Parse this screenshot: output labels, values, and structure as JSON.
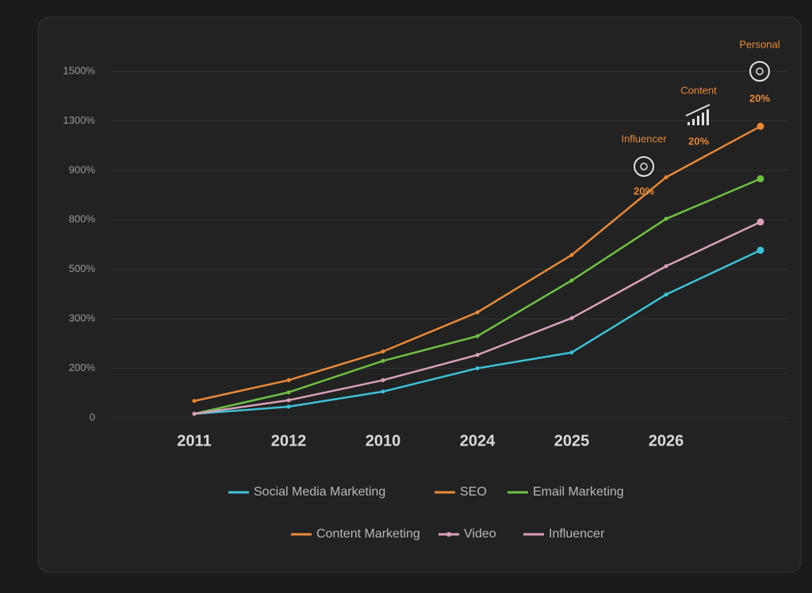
{
  "chart_data": {
    "type": "line",
    "categories": [
      "2011",
      "2012",
      "2010",
      "2024",
      "2025",
      "2026",
      null
    ],
    "ylim": [
      0,
      1500
    ],
    "yticks": [
      0,
      {
        "value": 200,
        "label": "200%"
      },
      {
        "value": 300,
        "label": "300%"
      },
      {
        "value": 500,
        "label": "500%"
      },
      {
        "value": 800,
        "label": "800%"
      },
      {
        "value": 900,
        "label": "900%"
      },
      {
        "value": 1300,
        "label": "1300%"
      },
      {
        "value": 1500,
        "label": "1500%"
      }
    ],
    "grid": true,
    "series": [
      {
        "name": "Social Media Marketing",
        "color": "#3fc1d6",
        "values": [
          16,
          45,
          106,
          200,
          232,
          398,
          616
        ]
      },
      {
        "name": "SEO",
        "color": "#e8893a",
        "values": [
          68,
          152,
          234,
          326,
          587,
          886,
          1256
        ]
      },
      {
        "name": "Email Marketing",
        "color": "#6fbf45",
        "values": [
          16,
          103,
          215,
          265,
          455,
          802,
          883
        ]
      },
      {
        "name": "Video",
        "color": "#d9a0b8",
        "values": [
          16,
          71,
          152,
          227,
          303,
          519,
          787
        ]
      }
    ],
    "legend": [
      {
        "name": "Social Media Marketing",
        "color": "#3fc1d6",
        "marker": false
      },
      {
        "name": "SEO",
        "color": "#e8893a",
        "marker": false
      },
      {
        "name": "Email Marketing",
        "color": "#6fbf45",
        "marker": false
      },
      {
        "name": "Content Marketing",
        "color": "#e8893a",
        "marker": false
      },
      {
        "name": "Video",
        "color": "#d9a0b8",
        "marker": true
      },
      {
        "name": "Influencer",
        "color": "#d9a0b8",
        "marker": false
      }
    ],
    "annotations": [
      {
        "label": "Personal",
        "text": "20%",
        "icon": "circle"
      },
      {
        "label": "Content",
        "text": "20%",
        "icon": "bars"
      },
      {
        "label": "Influencer",
        "text": "20%",
        "icon": "circle"
      }
    ]
  }
}
